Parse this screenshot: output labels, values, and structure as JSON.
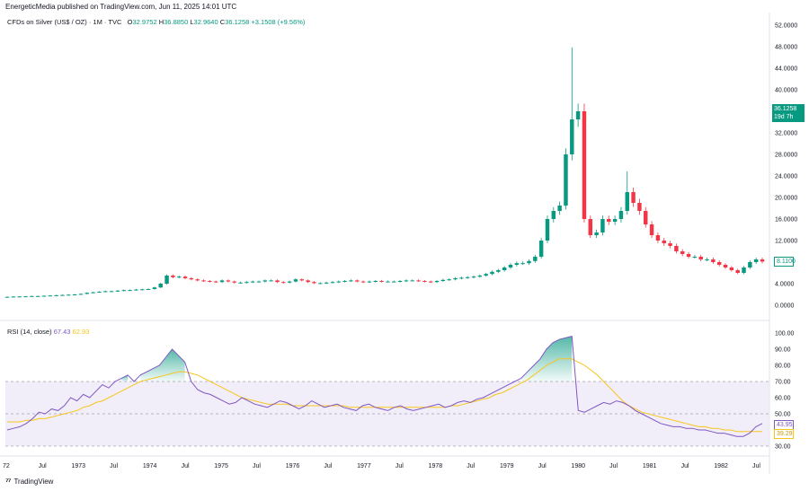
{
  "publisher_line": "EnergeticMedia published on TradingView.com, Jun 11, 2025 14:01 UTC",
  "legend": {
    "symbol": "CFDs on Silver (US$ / OZ) · 1M · TVC",
    "o_label": "O",
    "o_val": "32.9752",
    "h_label": "H",
    "h_val": "36.8850",
    "l_label": "L",
    "l_val": "32.9640",
    "c_label": "C",
    "c_val": "36.1258",
    "change": "+3.1508 (+9.56%)"
  },
  "rsi_legend": {
    "label": "RSI (14, close)",
    "rsi": "67.43",
    "ma": "62.93"
  },
  "price_badge": {
    "price": "36.1258",
    "countdown": "19d 7h"
  },
  "last_price_label": "8.1100",
  "rsi_badge": "43.95",
  "ma_badge": "39.29",
  "footer": {
    "logo": "⁷⁷",
    "brand": "TradingView"
  },
  "colors": {
    "up": "#089981",
    "down": "#f23645",
    "rsi": "#7e57c2",
    "ma": "#f7c51a",
    "band": "#ede7f6"
  },
  "chart_data": [
    {
      "type": "candlestick",
      "title": "CFDs on Silver (US$ / OZ) · 1M · TVC",
      "y_ticks": [
        "52.0000",
        "48.0000",
        "44.0000",
        "40.0000",
        "36.0000",
        "32.0000",
        "28.0000",
        "24.0000",
        "20.0000",
        "16.0000",
        "12.0000",
        "8.0000",
        "4.0000",
        "0.0000"
      ],
      "ylim": [
        0,
        52
      ],
      "x_ticks": [
        "72",
        "Jul",
        "1973",
        "Jul",
        "1974",
        "Jul",
        "1975",
        "Jul",
        "1976",
        "Jul",
        "1977",
        "Jul",
        "1978",
        "Jul",
        "1979",
        "Jul",
        "1980",
        "Jul",
        "1981",
        "Jul",
        "1982",
        "Jul"
      ],
      "monthly_close_approx": [
        1.55,
        1.6,
        1.62,
        1.65,
        1.7,
        1.7,
        1.75,
        1.8,
        1.85,
        1.9,
        1.95,
        2.0,
        2.1,
        2.3,
        2.4,
        2.5,
        2.6,
        2.6,
        2.7,
        2.8,
        2.8,
        2.9,
        2.95,
        3.0,
        3.3,
        4.0,
        5.5,
        5.2,
        5.3,
        5.0,
        4.8,
        4.6,
        4.5,
        4.4,
        4.3,
        4.6,
        4.4,
        4.2,
        4.2,
        4.3,
        4.4,
        4.4,
        4.6,
        4.6,
        4.3,
        4.2,
        4.4,
        4.8,
        4.6,
        4.3,
        4.1,
        4.1,
        4.2,
        4.3,
        4.4,
        4.5,
        4.6,
        4.4,
        4.3,
        4.4,
        4.5,
        4.4,
        4.4,
        4.4,
        4.5,
        4.6,
        4.6,
        4.5,
        4.4,
        4.3,
        4.5,
        4.7,
        4.8,
        5.0,
        5.1,
        5.2,
        5.3,
        5.5,
        5.8,
        6.2,
        6.5,
        7.0,
        7.5,
        7.8,
        7.8,
        8.2,
        9.0,
        12.0,
        16.0,
        17.5,
        18.5,
        28.0,
        34.5,
        36.0,
        16.0,
        13.0,
        13.5,
        16.0,
        15.5,
        16.0,
        17.5,
        21.0,
        19.0,
        17.5,
        15.0,
        13.0,
        12.0,
        11.5,
        11.0,
        10.0,
        9.5,
        9.0,
        9.0,
        8.5,
        8.5,
        8.0,
        7.5,
        7.0,
        6.5,
        6.0,
        7.0,
        8.0,
        8.5,
        8.1
      ]
    },
    {
      "type": "line",
      "title": "RSI (14, close)",
      "y_ticks": [
        "100.00",
        "90.00",
        "80.00",
        "70.00",
        "60.00",
        "50.00",
        "40.00",
        "30.00"
      ],
      "ylim": [
        30,
        100
      ],
      "bands": [
        30,
        50,
        70
      ],
      "series": [
        {
          "name": "RSI",
          "values": [
            40,
            41,
            42,
            44,
            47,
            51,
            50,
            53,
            52,
            55,
            60,
            58,
            62,
            60,
            64,
            68,
            66,
            70,
            72,
            74,
            70,
            74,
            76,
            78,
            80,
            85,
            90,
            86,
            82,
            70,
            65,
            63,
            62,
            60,
            58,
            56,
            57,
            60,
            58,
            56,
            55,
            54,
            56,
            58,
            57,
            55,
            53,
            55,
            58,
            56,
            54,
            55,
            56,
            54,
            53,
            52,
            55,
            56,
            54,
            53,
            52,
            54,
            55,
            53,
            52,
            53,
            54,
            55,
            56,
            54,
            55,
            57,
            58,
            57,
            59,
            60,
            62,
            64,
            66,
            68,
            70,
            72,
            76,
            80,
            84,
            90,
            94,
            96,
            97,
            98,
            52,
            51,
            53,
            55,
            57,
            56,
            58,
            57,
            55,
            52,
            50,
            48,
            46,
            44,
            43,
            42,
            42,
            41,
            41,
            40,
            40,
            39,
            38,
            38,
            37,
            36,
            36,
            38,
            42,
            44
          ]
        },
        {
          "name": "RSI-based MA",
          "values": [
            45,
            45,
            45,
            46,
            46,
            47,
            47,
            48,
            49,
            50,
            51,
            52,
            54,
            55,
            57,
            58,
            60,
            62,
            64,
            66,
            68,
            70,
            71,
            72,
            73,
            74,
            75,
            76,
            76,
            75,
            74,
            72,
            70,
            68,
            66,
            64,
            62,
            60,
            59,
            58,
            57,
            56,
            56,
            56,
            56,
            55,
            55,
            55,
            55,
            55,
            55,
            55,
            55,
            55,
            54,
            54,
            54,
            54,
            54,
            54,
            54,
            54,
            54,
            54,
            54,
            54,
            54,
            54,
            54,
            54,
            55,
            55,
            56,
            57,
            58,
            59,
            60,
            62,
            63,
            65,
            67,
            69,
            71,
            74,
            77,
            80,
            82,
            84,
            84,
            84,
            82,
            80,
            77,
            74,
            70,
            66,
            62,
            58,
            55,
            53,
            51,
            50,
            49,
            48,
            47,
            46,
            45,
            44,
            43,
            42,
            42,
            41,
            41,
            40,
            40,
            39,
            39,
            39,
            39,
            39
          ]
        }
      ]
    }
  ]
}
